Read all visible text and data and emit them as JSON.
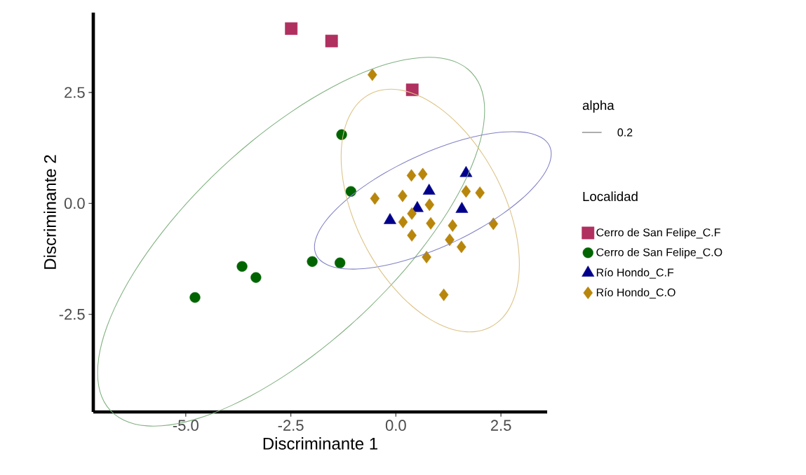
{
  "chart_data": {
    "type": "scatter",
    "xlabel": "Discriminante 1",
    "ylabel": "Discriminante 2",
    "legend_title": "Localidad",
    "legend": "right",
    "grid": false,
    "xlim": [
      -7.2,
      3.6
    ],
    "ylim": [
      -4.7,
      4.3
    ],
    "xticks": [
      {
        "value": -5,
        "label": "-5.0"
      },
      {
        "value": -2.5,
        "label": "-2.5"
      },
      {
        "value": 0,
        "label": "0.0"
      },
      {
        "value": 2.5,
        "label": "2.5"
      }
    ],
    "yticks": [
      {
        "value": -2.5,
        "label": "-2.5"
      },
      {
        "value": 0,
        "label": "0.0"
      },
      {
        "value": 2.5,
        "label": "2.5"
      }
    ],
    "annotations": [
      "alpha",
      "0.2"
    ],
    "series": [
      {
        "name": "Cerro de San Felipe_C.F",
        "type": "scatter",
        "marker": "square",
        "color": "#b03060",
        "x": [
          -2.49,
          -1.53,
          0.39
        ],
        "values": [
          3.94,
          3.66,
          2.56
        ]
      },
      {
        "name": "Cerro de San Felipe_C.O",
        "type": "scatter",
        "marker": "circle",
        "color": "#006400",
        "x": [
          -1.29,
          -1.07,
          -1.99,
          -1.33,
          -3.66,
          -3.33,
          -4.78
        ],
        "values": [
          1.55,
          0.27,
          -1.31,
          -1.34,
          -1.42,
          -1.67,
          -2.12
        ]
      },
      {
        "name": "Río Hondo_C.F",
        "type": "scatter",
        "marker": "triangle",
        "color": "#00008b",
        "x": [
          1.67,
          0.79,
          0.51,
          1.57,
          -0.14
        ],
        "values": [
          0.68,
          0.28,
          -0.11,
          -0.13,
          -0.38
        ]
      },
      {
        "name": "Río Hondo_C.O",
        "type": "scatter",
        "marker": "diamond",
        "color": "#b8860b",
        "x": [
          -0.56,
          -0.5,
          0.37,
          0.64,
          0.16,
          0.8,
          1.67,
          2.0,
          2.32,
          0.17,
          0.38,
          0.83,
          1.35,
          1.28,
          1.56,
          0.73,
          1.14,
          0.38
        ],
        "values": [
          2.9,
          0.11,
          0.63,
          0.66,
          0.17,
          -0.03,
          0.27,
          0.24,
          -0.46,
          -0.42,
          -0.72,
          -0.45,
          -0.5,
          -0.82,
          -0.98,
          -1.21,
          -2.06,
          -0.23
        ]
      }
    ]
  }
}
